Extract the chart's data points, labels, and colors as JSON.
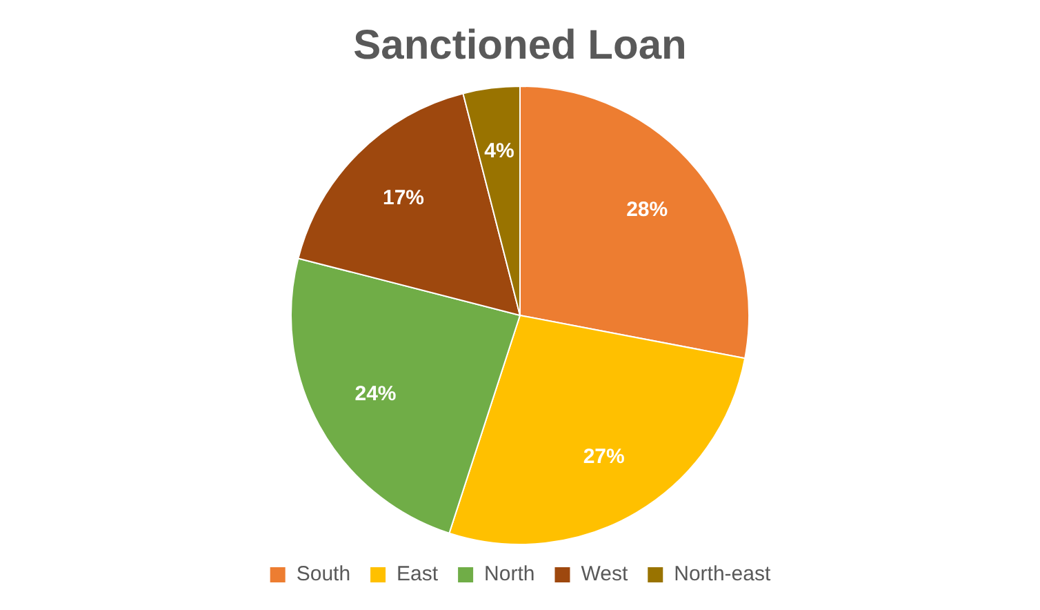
{
  "chart_data": {
    "type": "pie",
    "title": "Sanctioned Loan",
    "categories": [
      "South",
      "East",
      "North",
      "West",
      "North-east"
    ],
    "values": [
      28,
      27,
      24,
      17,
      4
    ],
    "colors": [
      "#ed7d31",
      "#ffc000",
      "#70ad47",
      "#9e480e",
      "#997300"
    ],
    "value_labels": [
      "28%",
      "27%",
      "24%",
      "17%",
      "4%"
    ],
    "legend": "bottom"
  }
}
